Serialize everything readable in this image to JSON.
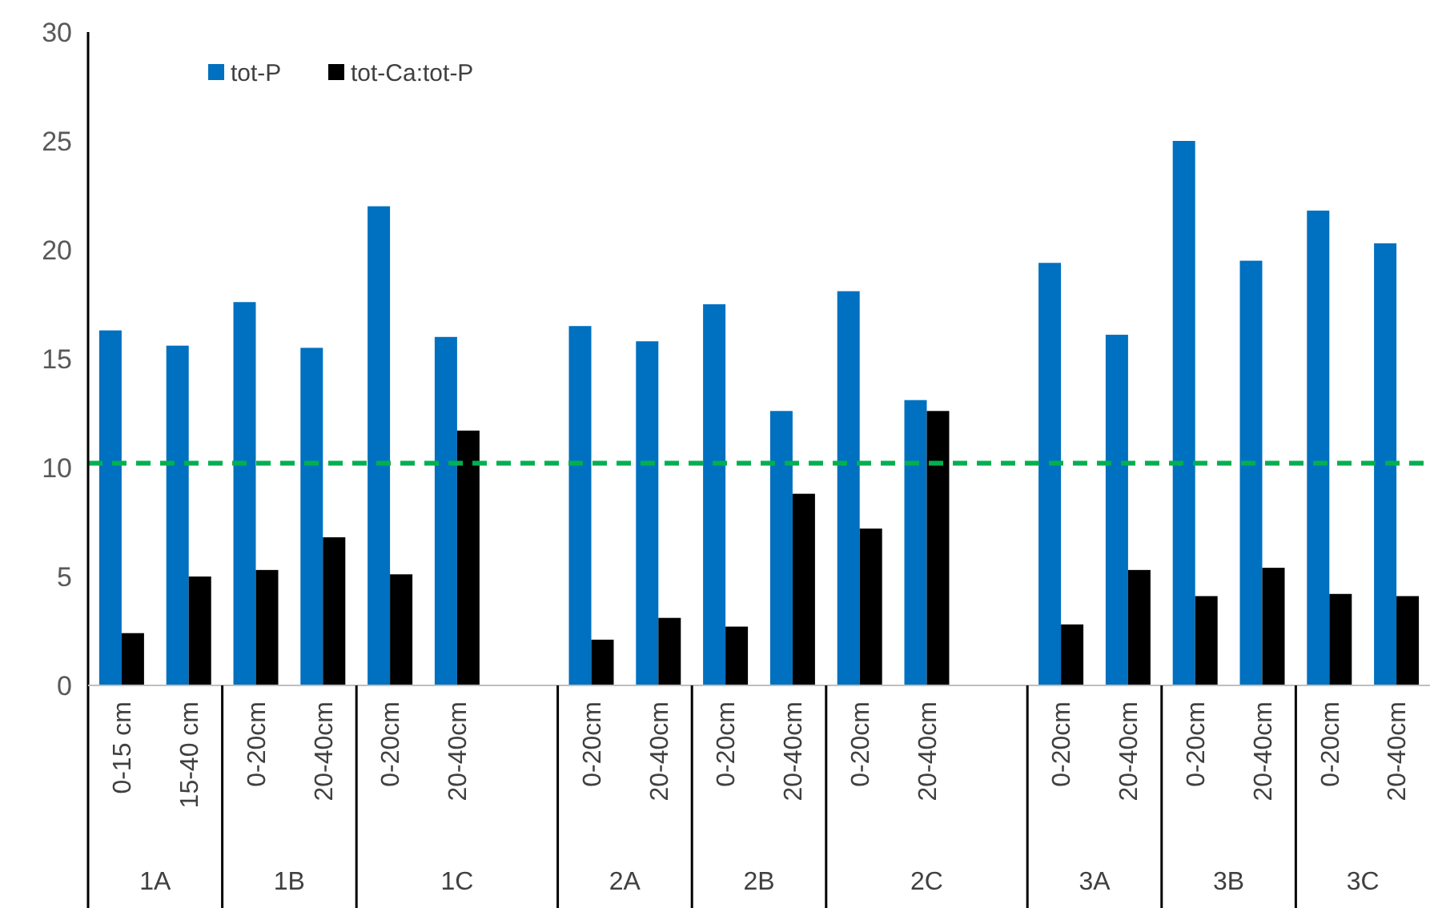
{
  "chart_data": {
    "type": "bar",
    "categories": [
      "0-15 cm",
      "15-40 cm",
      "0-20cm",
      "20-40cm",
      "0-20cm",
      "20-40cm",
      null,
      "0-20cm",
      "20-40cm",
      "0-20cm",
      "20-40cm",
      "0-20cm",
      "20-40cm",
      null,
      "0-20cm",
      "20-40cm",
      "0-20cm",
      "20-40cm",
      "0-20cm",
      "20-40cm"
    ],
    "series": [
      {
        "name": "tot-P",
        "color": "#0070c0",
        "values": [
          16.3,
          15.6,
          17.6,
          15.5,
          22.0,
          16.0,
          null,
          16.5,
          15.8,
          17.5,
          12.6,
          18.1,
          13.1,
          null,
          19.4,
          16.1,
          25.0,
          19.5,
          21.8,
          20.3
        ]
      },
      {
        "name": "tot-Ca:tot-P",
        "color": "#000000",
        "values": [
          2.4,
          5.0,
          5.3,
          6.8,
          5.1,
          11.7,
          null,
          2.1,
          3.1,
          2.7,
          8.8,
          7.2,
          12.6,
          null,
          2.8,
          5.3,
          4.1,
          5.4,
          4.2,
          4.1
        ]
      }
    ],
    "annotations": [
      "1A",
      "1B",
      "1C",
      "2A",
      "2B",
      "2C",
      "3A",
      "3B",
      "3C"
    ],
    "ref_lines": [
      {
        "axis": "y",
        "value": 10.2,
        "color": "#00b050",
        "line_style": "dashed"
      }
    ],
    "ylim": [
      0,
      30
    ],
    "yticks": [
      0,
      5,
      10,
      15,
      20,
      25,
      30
    ],
    "grid": false,
    "legend": "top left"
  }
}
